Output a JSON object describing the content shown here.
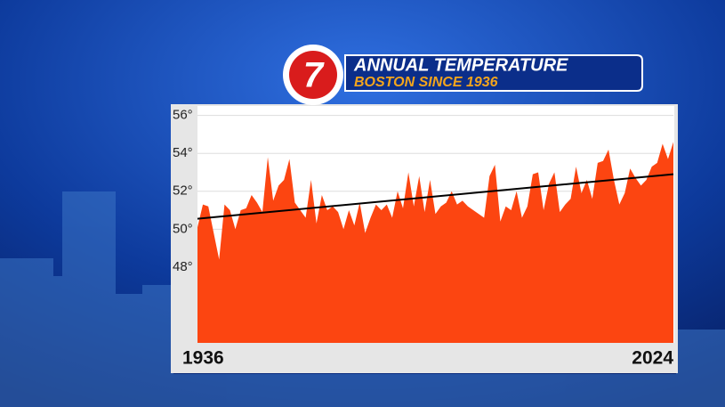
{
  "chart_data": {
    "type": "area",
    "logo": "7",
    "title": "ANNUAL TEMPERATURE",
    "subtitle": "BOSTON SINCE 1936",
    "categories": [
      "1936",
      null,
      null,
      null,
      null,
      null,
      null,
      null,
      null,
      null,
      null,
      null,
      null,
      null,
      null,
      null,
      null,
      null,
      null,
      null,
      null,
      null,
      null,
      null,
      null,
      null,
      null,
      null,
      null,
      null,
      null,
      null,
      null,
      null,
      null,
      null,
      null,
      null,
      null,
      null,
      null,
      null,
      null,
      null,
      null,
      null,
      null,
      null,
      null,
      null,
      null,
      null,
      null,
      null,
      null,
      null,
      null,
      null,
      null,
      null,
      null,
      null,
      null,
      null,
      null,
      null,
      null,
      null,
      null,
      null,
      null,
      null,
      null,
      null,
      null,
      null,
      null,
      null,
      null,
      null,
      null,
      null,
      null,
      null,
      null,
      null,
      null,
      null,
      "2024"
    ],
    "values": [
      50.1,
      51.3,
      51.2,
      49.8,
      48.4,
      51.3,
      51.0,
      50.0,
      51.0,
      51.1,
      51.8,
      51.4,
      50.9,
      53.8,
      51.5,
      52.3,
      52.6,
      53.7,
      51.4,
      51.0,
      50.6,
      52.6,
      50.3,
      51.8,
      51.0,
      51.2,
      50.9,
      50.0,
      51.0,
      50.2,
      51.4,
      49.8,
      50.6,
      51.3,
      51.0,
      51.3,
      50.6,
      52.0,
      51.1,
      53.0,
      51.2,
      52.8,
      50.9,
      52.6,
      50.8,
      51.2,
      51.4,
      52.0,
      51.3,
      51.5,
      51.2,
      51.0,
      50.8,
      50.6,
      52.8,
      53.4,
      50.4,
      51.2,
      51.0,
      52.0,
      50.6,
      51.2,
      52.9,
      53.0,
      51.0,
      52.4,
      53.0,
      50.9,
      51.3,
      51.6,
      53.3,
      51.9,
      52.6,
      51.6,
      53.5,
      53.6,
      54.2,
      52.6,
      51.3,
      51.9,
      53.2,
      52.7,
      52.3,
      52.6,
      53.3,
      53.5,
      54.5,
      53.7,
      54.6
    ],
    "color": "#fc4511",
    "trend": {
      "start": 50.55,
      "end": 52.9,
      "color": "#000000"
    },
    "ylim": [
      44,
      56.5
    ],
    "yticks": [
      {
        "value": 48,
        "label": "48°"
      },
      {
        "value": 50,
        "label": "50°"
      },
      {
        "value": 52,
        "label": "52°"
      },
      {
        "value": 54,
        "label": "54°"
      },
      {
        "value": 56,
        "label": "56°"
      }
    ],
    "grid": true
  }
}
